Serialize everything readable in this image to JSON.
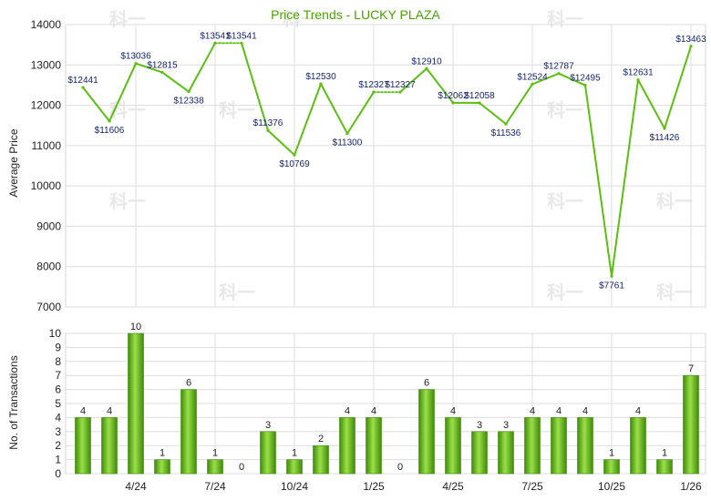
{
  "chart_data": [
    {
      "type": "line",
      "title": "Price Trends - LUCKY PLAZA",
      "ylabel": "Average Price",
      "ylim": [
        7000,
        14000
      ],
      "yticks": [
        7000,
        8000,
        9000,
        10000,
        11000,
        12000,
        13000,
        14000
      ],
      "grid": true,
      "color": "#5cbf10",
      "points": [
        {
          "x": 0,
          "y": 12441,
          "label": "$12441"
        },
        {
          "x": 1,
          "y": 11606,
          "label": "$11606"
        },
        {
          "x": 2,
          "y": 13036,
          "label": "$13036"
        },
        {
          "x": 3,
          "y": 12815,
          "label": "$12815"
        },
        {
          "x": 4,
          "y": 12338,
          "label": "$12338"
        },
        {
          "x": 5,
          "y": 13541,
          "label": "$13541"
        },
        {
          "x": 6,
          "y": 13541,
          "label": "$13541"
        },
        {
          "x": 7,
          "y": 11376,
          "label": "$11376"
        },
        {
          "x": 8,
          "y": 10769,
          "label": "$10769"
        },
        {
          "x": 9,
          "y": 12530,
          "label": "$12530"
        },
        {
          "x": 10,
          "y": 11300,
          "label": "$11300"
        },
        {
          "x": 11,
          "y": 12327,
          "label": "$12327"
        },
        {
          "x": 12,
          "y": 12327,
          "label": "$12327"
        },
        {
          "x": 13,
          "y": 12910,
          "label": "$12910"
        },
        {
          "x": 14,
          "y": 12062,
          "label": "$12062"
        },
        {
          "x": 15,
          "y": 12058,
          "label": "$12058"
        },
        {
          "x": 16,
          "y": 11536,
          "label": "$11536"
        },
        {
          "x": 17,
          "y": 12524,
          "label": "$12524"
        },
        {
          "x": 18,
          "y": 12787,
          "label": "$12787"
        },
        {
          "x": 19,
          "y": 12495,
          "label": "$12495"
        },
        {
          "x": 20,
          "y": 7761,
          "label": "$7761"
        },
        {
          "x": 21,
          "y": 12631,
          "label": "$12631"
        },
        {
          "x": 22,
          "y": 11426,
          "label": "$11426"
        },
        {
          "x": 23,
          "y": 13463,
          "label": "$13463"
        }
      ],
      "dashed_segments": [
        [
          5,
          6
        ],
        [
          11,
          12
        ]
      ]
    },
    {
      "type": "bar",
      "ylabel": "No. of Transactions",
      "ylim": [
        0,
        10
      ],
      "yticks": [
        0,
        1,
        2,
        3,
        4,
        5,
        6,
        7,
        8,
        9,
        10
      ],
      "grid": true,
      "color": "#5cbf10",
      "values": [
        4,
        4,
        10,
        1,
        6,
        1,
        0,
        3,
        1,
        2,
        4,
        4,
        0,
        6,
        4,
        3,
        3,
        4,
        4,
        4,
        1,
        4,
        1,
        7
      ],
      "xticks": [
        {
          "x": 2,
          "label": "4/24"
        },
        {
          "x": 5,
          "label": "7/24"
        },
        {
          "x": 8,
          "label": "10/24"
        },
        {
          "x": 11,
          "label": "1/25"
        },
        {
          "x": 14,
          "label": "4/25"
        },
        {
          "x": 17,
          "label": "7/25"
        },
        {
          "x": 20,
          "label": "10/25"
        },
        {
          "x": 23,
          "label": "1/26"
        }
      ]
    }
  ],
  "watermark": "科一"
}
